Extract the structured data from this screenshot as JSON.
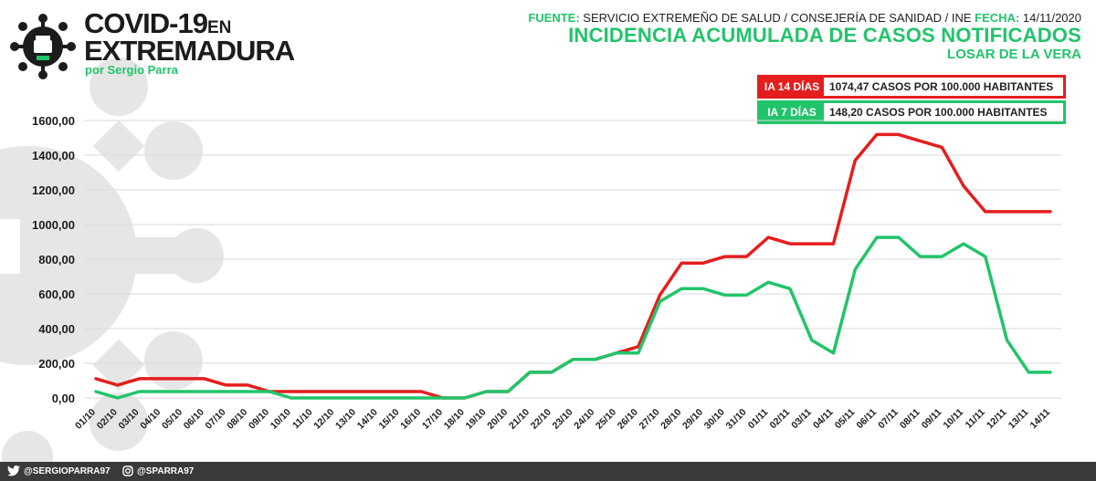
{
  "header": {
    "brand_line1": "COVID-19",
    "brand_line1_suffix": "EN",
    "brand_line2": "EXTREMADURA",
    "brand_author": "por Sergio Parra",
    "source_label": "FUENTE:",
    "source_text": "SERVICIO EXTREMEÑO DE SALUD / CONSEJERÍA DE SANIDAD / INE",
    "date_label": "FECHA:",
    "date_value": "14/11/2020",
    "title": "INCIDENCIA ACUMULADA DE CASOS NOTIFICADOS",
    "place": "LOSAR DE LA VERA"
  },
  "legend": {
    "ia14_tag": "IA 14 DÍAS",
    "ia14_value": "1074,47 CASOS POR 100.000 HABITANTES",
    "ia7_tag": "IA 7 DÍAS",
    "ia7_value": "148,20 CASOS POR 100.000 HABITANTES"
  },
  "footer": {
    "twitter_handle": "@SERGIOPARRA97",
    "instagram_handle": "@SPARRA97"
  },
  "colors": {
    "ia14": "#e41e1e",
    "ia7": "#22c46a",
    "text": "#1c1c1c",
    "grid": "#d9d9d9",
    "footer_bg": "#3a3a3a"
  },
  "chart_data": {
    "type": "line",
    "ylim": [
      0,
      1600
    ],
    "yticks": [
      "0,00",
      "200,00",
      "400,00",
      "600,00",
      "800,00",
      "1000,00",
      "1200,00",
      "1400,00",
      "1600,00"
    ],
    "grid": true,
    "legend_position": "top-right",
    "categories": [
      "01/10",
      "02/10",
      "03/10",
      "04/10",
      "05/10",
      "06/10",
      "07/10",
      "08/10",
      "09/10",
      "10/10",
      "11/10",
      "12/10",
      "13/10",
      "14/10",
      "15/10",
      "16/10",
      "17/10",
      "18/10",
      "19/10",
      "20/10",
      "21/10",
      "22/10",
      "23/10",
      "24/10",
      "25/10",
      "26/10",
      "27/10",
      "28/10",
      "29/10",
      "30/10",
      "31/10",
      "01/11",
      "02/11",
      "03/11",
      "04/11",
      "05/11",
      "06/11",
      "07/11",
      "08/11",
      "09/11",
      "10/11",
      "11/11",
      "12/11",
      "13/11",
      "14/11"
    ],
    "series": [
      {
        "name": "IA 14 DÍAS",
        "color": "#e41e1e",
        "values": [
          111,
          74,
          111,
          111,
          111,
          111,
          74,
          74,
          37,
          37,
          37,
          37,
          37,
          37,
          37,
          37,
          0,
          0,
          37,
          37,
          148,
          148,
          222,
          222,
          259,
          296,
          593,
          778,
          778,
          815,
          815,
          926,
          889,
          889,
          889,
          1370,
          1519,
          1519,
          1482,
          1445,
          1222,
          1074,
          1074,
          1074,
          1074
        ]
      },
      {
        "name": "IA 7 DÍAS",
        "color": "#22c46a",
        "values": [
          37,
          0,
          37,
          37,
          37,
          37,
          37,
          37,
          37,
          0,
          0,
          0,
          0,
          0,
          0,
          0,
          0,
          0,
          37,
          37,
          148,
          148,
          222,
          222,
          259,
          259,
          556,
          630,
          630,
          593,
          593,
          667,
          630,
          333,
          259,
          741,
          926,
          926,
          815,
          815,
          889,
          815,
          333,
          148,
          148
        ]
      }
    ]
  }
}
